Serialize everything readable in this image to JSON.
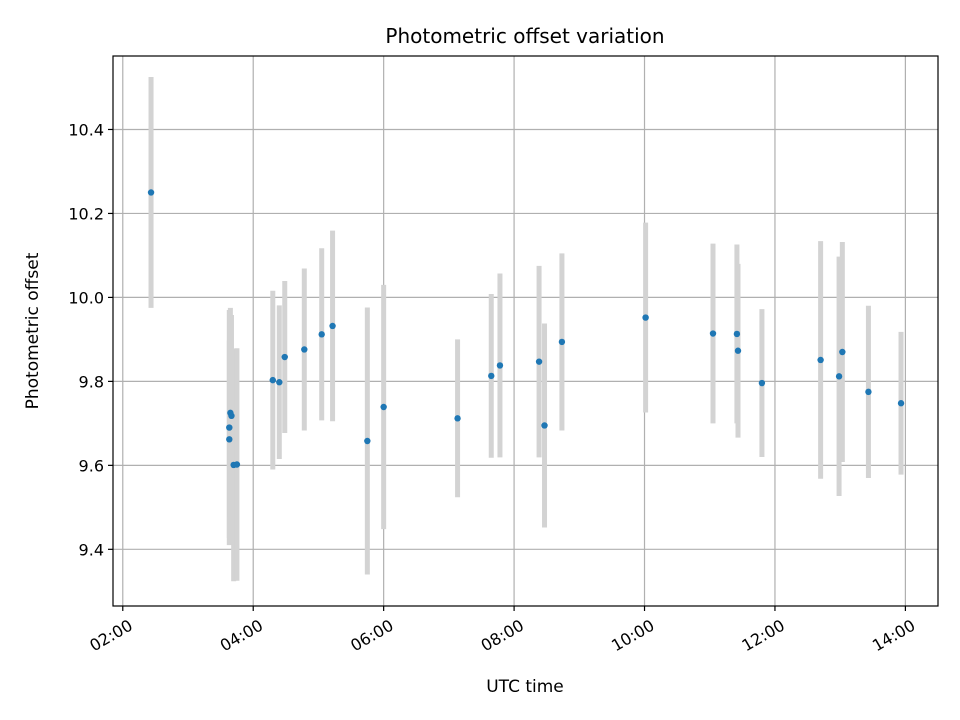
{
  "chart_data": {
    "type": "scatter",
    "title": "Photometric offset variation",
    "xlabel": "UTC time",
    "ylabel": "Photometric offset",
    "x_unit": "time (HH:MM)",
    "xlim": [
      "01:51",
      "14:30"
    ],
    "ylim": [
      9.265,
      10.575
    ],
    "x_ticks": [
      "02:00",
      "04:00",
      "06:00",
      "08:00",
      "10:00",
      "12:00",
      "14:00"
    ],
    "y_ticks": [
      9.4,
      9.6,
      9.8,
      10.0,
      10.2,
      10.4
    ],
    "grid": true,
    "legend": "none",
    "colors": {
      "point": "#1f77b4",
      "errorbar": "#d3d3d3",
      "grid": "#b0b0b0"
    },
    "points": [
      {
        "x": "02:26",
        "y": 10.25,
        "err": 0.275
      },
      {
        "x": "03:38",
        "y": 9.69,
        "err": 0.28
      },
      {
        "x": "03:38",
        "y": 9.662,
        "err": 0.235
      },
      {
        "x": "03:39",
        "y": 9.725,
        "err": 0.25
      },
      {
        "x": "03:40",
        "y": 9.718,
        "err": 0.24
      },
      {
        "x": "03:42",
        "y": 9.601,
        "err": 0.277
      },
      {
        "x": "03:45",
        "y": 9.602,
        "err": 0.277
      },
      {
        "x": "04:18",
        "y": 9.803,
        "err": 0.213
      },
      {
        "x": "04:24",
        "y": 9.798,
        "err": 0.183
      },
      {
        "x": "04:29",
        "y": 9.858,
        "err": 0.181
      },
      {
        "x": "04:47",
        "y": 9.876,
        "err": 0.193
      },
      {
        "x": "05:03",
        "y": 9.912,
        "err": 0.205
      },
      {
        "x": "05:13",
        "y": 9.932,
        "err": 0.227
      },
      {
        "x": "05:45",
        "y": 9.658,
        "err": 0.318
      },
      {
        "x": "06:00",
        "y": 9.739,
        "err": 0.291
      },
      {
        "x": "07:08",
        "y": 9.712,
        "err": 0.188
      },
      {
        "x": "07:39",
        "y": 9.813,
        "err": 0.195
      },
      {
        "x": "07:47",
        "y": 9.838,
        "err": 0.219
      },
      {
        "x": "08:23",
        "y": 9.847,
        "err": 0.228
      },
      {
        "x": "08:28",
        "y": 9.695,
        "err": 0.243
      },
      {
        "x": "08:44",
        "y": 9.894,
        "err": 0.211
      },
      {
        "x": "10:01",
        "y": 9.952,
        "err": 0.226
      },
      {
        "x": "11:03",
        "y": 9.914,
        "err": 0.214
      },
      {
        "x": "11:25",
        "y": 9.913,
        "err": 0.213
      },
      {
        "x": "11:26",
        "y": 9.873,
        "err": 0.207
      },
      {
        "x": "11:48",
        "y": 9.796,
        "err": 0.176
      },
      {
        "x": "12:42",
        "y": 9.851,
        "err": 0.283
      },
      {
        "x": "12:59",
        "y": 9.812,
        "err": 0.285
      },
      {
        "x": "13:02",
        "y": 9.87,
        "err": 0.262
      },
      {
        "x": "13:26",
        "y": 9.775,
        "err": 0.205
      },
      {
        "x": "13:56",
        "y": 9.748,
        "err": 0.17
      }
    ]
  }
}
